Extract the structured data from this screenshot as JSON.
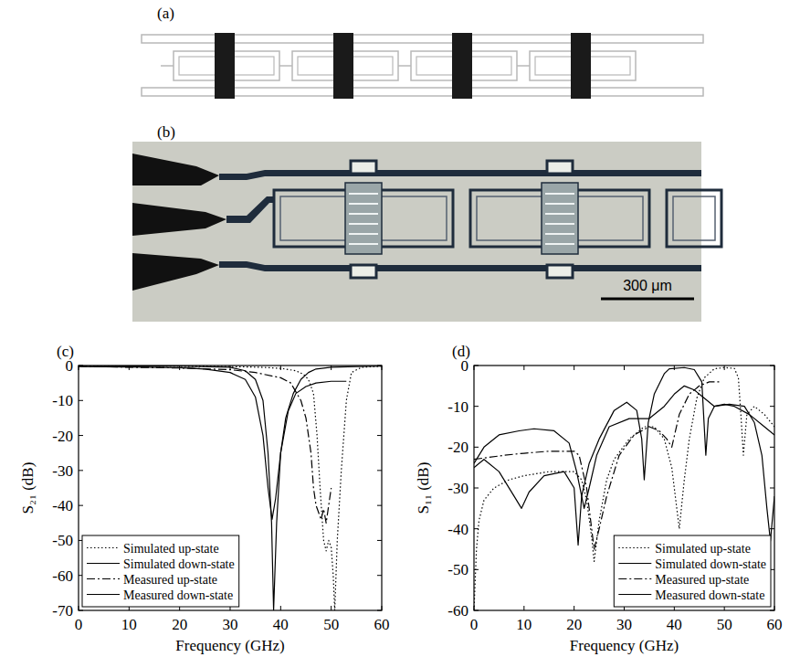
{
  "figure": {
    "panels": [
      {
        "label": "(a)"
      },
      {
        "label": "(b)",
        "scale_bar": "300 μm"
      }
    ]
  },
  "chart_data": [
    {
      "type": "line",
      "panel_label": "(c)",
      "x_label": "Frequency (GHz)",
      "y_label": "S₂₁ (dB)",
      "xlim": [
        0,
        60
      ],
      "xticks": [
        0,
        10,
        20,
        30,
        40,
        50,
        60
      ],
      "ylim": [
        -70,
        0
      ],
      "yticks": [
        0,
        -10,
        -20,
        -30,
        -40,
        -50,
        -60,
        -70
      ],
      "legend": "lower left",
      "series": [
        {
          "name": "Simulated up-state",
          "color": "#000000",
          "line_style": "dotted",
          "x": [
            0,
            10,
            20,
            30,
            36,
            40,
            43,
            44.5,
            45.5,
            46.5,
            47.2,
            47.8,
            48.5,
            49,
            49.5,
            50,
            50.4,
            50.7,
            51.2,
            52,
            53,
            54,
            56,
            60
          ],
          "values": [
            0,
            -0.1,
            -0.2,
            -0.3,
            -0.5,
            -0.8,
            -1.5,
            -2.5,
            -4,
            -8,
            -20,
            -35,
            -50,
            -53,
            -50,
            -52,
            -60,
            -70,
            -50,
            -30,
            -10,
            -2,
            -0.5,
            -0.2
          ]
        },
        {
          "name": "Simulated down-state",
          "color": "#000000",
          "line_style": "solid",
          "x": [
            0,
            10,
            20,
            30,
            33,
            35,
            36.5,
            37.5,
            38.2,
            38.6,
            39.2,
            40,
            41,
            42.5,
            44,
            45.5,
            47,
            50,
            55,
            60
          ],
          "values": [
            0,
            -0.1,
            -0.2,
            -0.5,
            -1.5,
            -4,
            -10,
            -25,
            -45,
            -70,
            -45,
            -25,
            -15,
            -8,
            -4,
            -2,
            -1,
            -0.5,
            -0.3,
            -0.2
          ]
        },
        {
          "name": "Measured up-state",
          "color": "#000000",
          "line_style": "dashdot",
          "x": [
            0,
            10,
            20,
            30,
            35,
            40,
            42,
            44,
            45,
            46,
            46.5,
            47,
            47.5,
            48,
            48.5,
            49,
            49.5,
            50
          ],
          "values": [
            -0.2,
            -0.5,
            -0.7,
            -1.2,
            -2,
            -3.5,
            -5,
            -10,
            -15,
            -25,
            -35,
            -40,
            -42,
            -44,
            -41,
            -45,
            -40,
            -35
          ]
        },
        {
          "name": "Measured down-state",
          "color": "#000000",
          "line_style": "solid",
          "x": [
            0,
            10,
            20,
            25,
            30,
            33,
            35,
            36.5,
            37.5,
            38.3,
            39,
            40,
            41.5,
            43,
            45,
            47,
            50,
            53
          ],
          "values": [
            -0.3,
            -0.4,
            -0.6,
            -1,
            -2,
            -4,
            -9,
            -20,
            -35,
            -44,
            -38,
            -25,
            -13,
            -8,
            -6,
            -5,
            -4.5,
            -4.5
          ]
        }
      ]
    },
    {
      "type": "line",
      "panel_label": "(d)",
      "x_label": "Frequency (GHz)",
      "y_label": "S₁₁ (dB)",
      "xlim": [
        0,
        60
      ],
      "xticks": [
        0,
        10,
        20,
        30,
        40,
        50,
        60
      ],
      "ylim": [
        -60,
        0
      ],
      "yticks": [
        0,
        -10,
        -20,
        -30,
        -40,
        -50,
        -60
      ],
      "legend": "lower right",
      "series": [
        {
          "name": "Simulated up-state",
          "color": "#000000",
          "line_style": "dotted",
          "x": [
            0,
            0.5,
            1,
            2,
            4,
            7,
            10,
            15,
            20,
            21.5,
            22.5,
            23.5,
            24,
            25,
            26.5,
            28,
            31,
            34,
            36,
            38,
            39.5,
            40.5,
            41,
            42,
            43,
            44.5,
            46,
            48,
            50,
            52,
            52.8,
            53.3,
            53.8,
            54.5,
            56,
            58,
            60
          ],
          "values": [
            -60,
            -45,
            -38,
            -33,
            -30,
            -28,
            -27,
            -26,
            -26,
            -28,
            -33,
            -42,
            -48,
            -38,
            -28,
            -23,
            -18,
            -15,
            -15,
            -18,
            -25,
            -35,
            -40,
            -28,
            -18,
            -8,
            -3,
            -0.8,
            -0.5,
            -0.7,
            -3,
            -12,
            -22,
            -12,
            -10,
            -12,
            -15
          ]
        },
        {
          "name": "Simulated down-state",
          "color": "#000000",
          "line_style": "solid",
          "x": [
            0,
            2,
            5,
            8,
            9.5,
            11,
            14,
            18,
            20,
            20.8,
            21.5,
            23,
            25,
            28,
            30.5,
            32.5,
            33.5,
            34,
            34.8,
            36,
            38,
            39,
            42,
            44,
            45.5,
            46.3,
            46.8,
            48,
            51,
            54,
            56,
            57.5,
            58.5,
            59.2,
            60
          ],
          "values": [
            -25,
            -23,
            -26,
            -32,
            -35,
            -31,
            -27,
            -26,
            -30,
            -44,
            -32,
            -24,
            -18,
            -11,
            -9,
            -11,
            -18,
            -28,
            -14,
            -7,
            -2,
            -0.8,
            -0.5,
            -1,
            -4,
            -22,
            -13,
            -10,
            -9.5,
            -10,
            -14,
            -22,
            -35,
            -43,
            -32
          ]
        },
        {
          "name": "Measured up-state",
          "color": "#000000",
          "line_style": "dashdot",
          "x": [
            0,
            3,
            6,
            10,
            15,
            20,
            21,
            22.5,
            24,
            25,
            26.5,
            29,
            32,
            35,
            37,
            38.5,
            39.5,
            41,
            43,
            45,
            47,
            49
          ],
          "values": [
            -23,
            -22.5,
            -22,
            -21.5,
            -21,
            -21,
            -22,
            -30,
            -45,
            -40,
            -32,
            -22,
            -17,
            -15,
            -16,
            -18,
            -20,
            -12,
            -7,
            -5,
            -4,
            -4
          ]
        },
        {
          "name": "Measured down-state",
          "color": "#000000",
          "line_style": "solid",
          "x": [
            0,
            2,
            5,
            9,
            12,
            16,
            19,
            20.5,
            22,
            23,
            24.5,
            27,
            31,
            35,
            38,
            40,
            42,
            44,
            46,
            48,
            50,
            52,
            55,
            58,
            60
          ],
          "values": [
            -24,
            -20,
            -17,
            -16,
            -15.5,
            -16,
            -19,
            -26,
            -35,
            -30,
            -22,
            -15,
            -13,
            -13,
            -10,
            -7,
            -5,
            -6,
            -8,
            -10,
            -9.5,
            -10,
            -12,
            -15,
            -17
          ]
        }
      ]
    }
  ]
}
